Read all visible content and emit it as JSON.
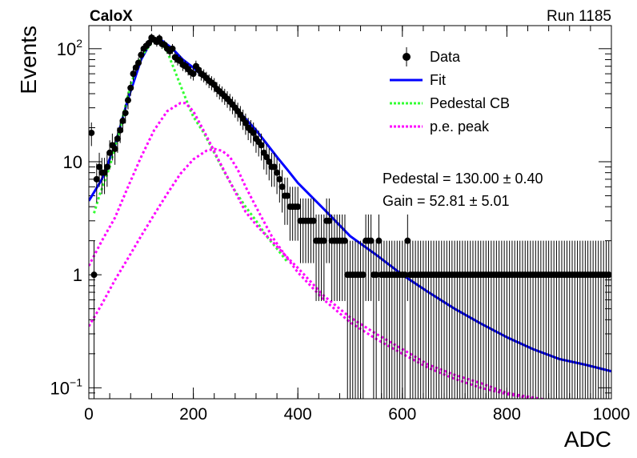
{
  "chart_data": {
    "type": "scatter",
    "title": "CaloX",
    "run_label": "Run 1185",
    "xlabel": "ADC",
    "ylabel": "Events",
    "xlim": [
      0,
      1000
    ],
    "ylim": [
      0.08,
      160
    ],
    "yscale": "log",
    "x_ticks": [
      "0",
      "200",
      "400",
      "600",
      "800",
      "1000"
    ],
    "y_ticks": [
      {
        "value": 100,
        "base": "10",
        "exp": "2"
      },
      {
        "value": 10,
        "label": "10"
      },
      {
        "value": 1,
        "label": "1"
      },
      {
        "value": 0.1,
        "base": "10",
        "exp": "−1"
      }
    ],
    "legend": {
      "placement": "top-right",
      "entries": [
        {
          "label": "Data",
          "style": "marker",
          "color": "#000000"
        },
        {
          "label": "Fit",
          "style": "solid",
          "color": "#0000ff"
        },
        {
          "label": "Pedestal CB",
          "style": "dotted",
          "color": "#33ff33"
        },
        {
          "label": "p.e. peak",
          "style": "dotted",
          "color": "#ff00ff"
        }
      ]
    },
    "annotations": [
      {
        "name": "pedestal",
        "text": "Pedestal = 130.00 ± 0.40"
      },
      {
        "name": "gain",
        "text": "Gain = 52.81 ± 5.01"
      }
    ],
    "series": [
      {
        "name": "Data",
        "color": "#000000",
        "x": [
          5,
          10,
          15,
          20,
          25,
          30,
          35,
          40,
          45,
          50,
          55,
          60,
          65,
          70,
          75,
          80,
          85,
          90,
          95,
          100,
          105,
          110,
          115,
          120,
          125,
          130,
          135,
          140,
          145,
          150,
          155,
          160,
          165,
          170,
          175,
          180,
          185,
          190,
          195,
          200,
          205,
          210,
          215,
          220,
          225,
          230,
          235,
          240,
          245,
          250,
          255,
          260,
          265,
          270,
          275,
          280,
          285,
          290,
          295,
          300,
          305,
          310,
          315,
          320,
          325,
          330,
          335,
          340,
          345,
          350,
          355,
          360,
          365,
          370,
          375,
          380,
          385,
          390,
          395,
          400,
          405,
          410,
          415,
          420,
          425,
          430,
          435,
          440,
          445,
          450,
          455,
          460,
          465,
          470,
          475,
          480,
          485,
          490,
          495,
          500,
          505,
          510,
          515,
          520,
          525,
          530,
          535,
          540,
          545,
          550,
          555,
          560,
          565,
          570,
          575,
          580,
          585,
          590,
          595,
          600,
          605,
          610,
          615,
          620,
          625,
          630,
          635,
          640,
          645,
          650,
          655,
          660,
          665,
          670,
          675,
          680,
          685,
          690,
          695,
          700,
          705,
          710,
          715,
          720,
          725,
          730,
          735,
          740,
          745,
          750,
          755,
          760,
          765,
          770,
          775,
          780,
          785,
          790,
          795,
          800,
          805,
          810,
          815,
          820,
          825,
          830,
          835,
          840,
          845,
          850,
          855,
          860,
          865,
          870,
          875,
          880,
          885,
          890,
          895,
          900,
          905,
          910,
          915,
          920,
          925,
          930,
          935,
          940,
          945,
          950,
          955,
          960,
          965,
          970,
          975,
          980,
          985,
          990,
          995
        ],
        "y": [
          18,
          1,
          7,
          9,
          8,
          8,
          9,
          12,
          14,
          13,
          16,
          19,
          23,
          27,
          35,
          45,
          60,
          68,
          75,
          88,
          100,
          106,
          112,
          125,
          120,
          115,
          123,
          110,
          108,
          100,
          95,
          100,
          84,
          80,
          78,
          72,
          70,
          66,
          62,
          60,
          70,
          65,
          60,
          58,
          55,
          52,
          50,
          48,
          44,
          42,
          40,
          38,
          36,
          34,
          32,
          30,
          28,
          26,
          24,
          22,
          20,
          19,
          18,
          16,
          15,
          14,
          12,
          11,
          10,
          9,
          9,
          8,
          7,
          6,
          5,
          5,
          4,
          4,
          4,
          4,
          3,
          3,
          3,
          3,
          3,
          3,
          2,
          2,
          2,
          2,
          3,
          3,
          2,
          2,
          2,
          2,
          2,
          2,
          1,
          1,
          1,
          1,
          1,
          1,
          1,
          2,
          2,
          2,
          1,
          1,
          2,
          1,
          1,
          1,
          1,
          1,
          1,
          1,
          1,
          1,
          1,
          2,
          1,
          1,
          1,
          1,
          1,
          1,
          1,
          1,
          1,
          1,
          1,
          1,
          1,
          1,
          1,
          1,
          1,
          1,
          1,
          1,
          1,
          1,
          1,
          1,
          1,
          1,
          1,
          1,
          1,
          1,
          1,
          1,
          1,
          1,
          1,
          1,
          1,
          1,
          1,
          1,
          1,
          1,
          1,
          1,
          1,
          1,
          1,
          1,
          1,
          1,
          1,
          1,
          1,
          1,
          1,
          1,
          1,
          1,
          1,
          1,
          1,
          1,
          1,
          1,
          1,
          1,
          1,
          1,
          1,
          1,
          1,
          1,
          1,
          1,
          1,
          1,
          1
        ]
      },
      {
        "name": "Fit",
        "color": "#0000ff",
        "x": [
          0,
          25,
          50,
          75,
          100,
          120,
          130,
          140,
          160,
          180,
          200,
          220,
          240,
          260,
          280,
          300,
          320,
          340,
          360,
          380,
          400,
          450,
          500,
          550,
          600,
          650,
          700,
          750,
          800,
          850,
          900,
          950,
          1000
        ],
        "y": [
          4.5,
          7,
          14,
          36,
          80,
          118,
          122,
          118,
          100,
          80,
          68,
          56,
          46,
          38,
          30,
          24,
          19,
          14.5,
          11,
          8.5,
          6.5,
          3.8,
          2.2,
          1.5,
          1.0,
          0.7,
          0.5,
          0.37,
          0.28,
          0.22,
          0.18,
          0.16,
          0.14
        ]
      },
      {
        "name": "Pedestal CB",
        "color": "#33ff33",
        "x": [
          10,
          20,
          40,
          60,
          80,
          100,
          120,
          130,
          140,
          150,
          160,
          170,
          180,
          190,
          200,
          220,
          240,
          260,
          280,
          300,
          320,
          340,
          360,
          380
        ],
        "y": [
          3.5,
          5,
          9,
          20,
          48,
          85,
          112,
          118,
          110,
          95,
          72,
          55,
          42,
          32,
          25,
          18,
          12,
          8,
          5.5,
          4,
          3,
          2.2,
          1.7,
          1.3
        ]
      },
      {
        "name": "p.e. peak",
        "color": "#ff00ff",
        "x": [
          0,
          25,
          50,
          75,
          100,
          125,
          150,
          175,
          185,
          200,
          225,
          250,
          275,
          300,
          325,
          350,
          375,
          400,
          450,
          500,
          550,
          600,
          650,
          700,
          750,
          800,
          850,
          900
        ],
        "y": [
          1.2,
          2.0,
          3.2,
          6,
          11,
          19,
          28,
          33,
          33,
          28,
          17,
          10,
          6,
          3.6,
          2.6,
          2.0,
          1.5,
          1.15,
          0.65,
          0.42,
          0.3,
          0.22,
          0.16,
          0.13,
          0.11,
          0.09,
          0.082,
          0.075
        ]
      },
      {
        "name": "p.e. peak 2",
        "color": "#ff00ff",
        "x": [
          0,
          25,
          50,
          75,
          100,
          125,
          150,
          175,
          200,
          225,
          240,
          255,
          270,
          285,
          300,
          325,
          350,
          375,
          400,
          450,
          500,
          550,
          600,
          650,
          700,
          750,
          800,
          850,
          900
        ],
        "y": [
          0.35,
          0.55,
          0.9,
          1.4,
          2.2,
          3.4,
          5.2,
          7.8,
          10.5,
          12.5,
          13,
          12.5,
          11,
          8.5,
          6,
          3.6,
          2.2,
          1.5,
          1.05,
          0.6,
          0.38,
          0.27,
          0.2,
          0.15,
          0.12,
          0.1,
          0.088,
          0.08,
          0.072
        ]
      }
    ]
  }
}
